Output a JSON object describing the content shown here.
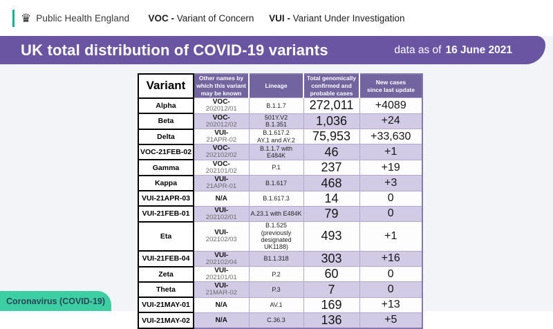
{
  "header": {
    "logo_text": "Public Health England",
    "crown_icon": "crown",
    "legend": {
      "voc_abbr": "VOC -",
      "voc_label": "Variant of Concern",
      "vui_abbr": "VUI -",
      "vui_label": "Variant Under Investigation"
    }
  },
  "banner": {
    "title": "UK total distribution of COVID-19 variants",
    "data_as_of_prefix": "data as of",
    "data_as_of_date": "16 June 2021"
  },
  "table": {
    "columns": [
      "Variant",
      "Other names by\nwhich this variant\nmay be known",
      "Lineage",
      "Total genomically\nconfirmed and\nprobable cases",
      "New cases\nsince last update"
    ],
    "rows": [
      {
        "variant": "Alpha",
        "other_line1": "VOC-",
        "other_line2": "202012/01",
        "lineage": "B.1.1.7",
        "total": "272,011",
        "new": "+4089"
      },
      {
        "variant": "Beta",
        "other_line1": "VOC-",
        "other_line2": "202012/02",
        "lineage": "501Y.V2\nB.1.351",
        "total": "1,036",
        "new": "+24"
      },
      {
        "variant": "Delta",
        "other_line1": "VUI-",
        "other_line2": "21APR-02",
        "lineage": "B.1.617.2\nAY.1 and AY.2",
        "total": "75,953",
        "new": "+33,630"
      },
      {
        "variant": "VOC-21FEB-02",
        "other_line1": "VOC-",
        "other_line2": "202102/02",
        "lineage": "B.1.1.7 with E484K",
        "total": "46",
        "new": "+1"
      },
      {
        "variant": "Gamma",
        "other_line1": "VOC-",
        "other_line2": "202101/02",
        "lineage": "P.1",
        "total": "237",
        "new": "+19"
      },
      {
        "variant": "Kappa",
        "other_line1": "VUI-",
        "other_line2": "21APR-01",
        "lineage": "B.1.617",
        "total": "468",
        "new": "+3"
      },
      {
        "variant": "VUI-21APR-03",
        "other_line1": "N/A",
        "other_line2": "",
        "lineage": "B.1.617.3",
        "total": "14",
        "new": "0"
      },
      {
        "variant": "VUI-21FEB-01",
        "other_line1": "VUI-",
        "other_line2": "202102/01",
        "lineage": "A.23.1 with E484K",
        "total": "79",
        "new": "0"
      },
      {
        "variant": "Eta",
        "other_line1": "VUI-",
        "other_line2": "202102/03",
        "lineage": "B.1.525 (previously\ndesignated UK1188)",
        "total": "493",
        "new": "+1"
      },
      {
        "variant": "VUI-21FEB-04",
        "other_line1": "VUI-",
        "other_line2": "202102/04",
        "lineage": "B1.1.318",
        "total": "303",
        "new": "+16"
      },
      {
        "variant": "Zeta",
        "other_line1": "VUI-",
        "other_line2": "202101/01",
        "lineage": "P.2",
        "total": "60",
        "new": "0"
      },
      {
        "variant": "Theta",
        "other_line1": "VUI-",
        "other_line2": "21MAR-02",
        "lineage": "P.3",
        "total": "7",
        "new": "0"
      },
      {
        "variant": "VUI-21MAY-01",
        "other_line1": "N/A",
        "other_line2": "",
        "lineage": "AV.1",
        "total": "169",
        "new": "+13"
      },
      {
        "variant": "VUI-21MAY-02",
        "other_line1": "N/A",
        "other_line2": "",
        "lineage": "C.36.3",
        "total": "136",
        "new": "+5"
      }
    ]
  },
  "footer": {
    "tag": "Coronavirus (COVID-19)"
  },
  "colors": {
    "banner_purple": "#6a55a3",
    "table_header_purple": "#72649f",
    "row_lavender": "#d2cbe6",
    "page_background": "#f3f4f8",
    "pill_teal": "#3dcfa4",
    "logo_accent_teal": "#00b293"
  }
}
